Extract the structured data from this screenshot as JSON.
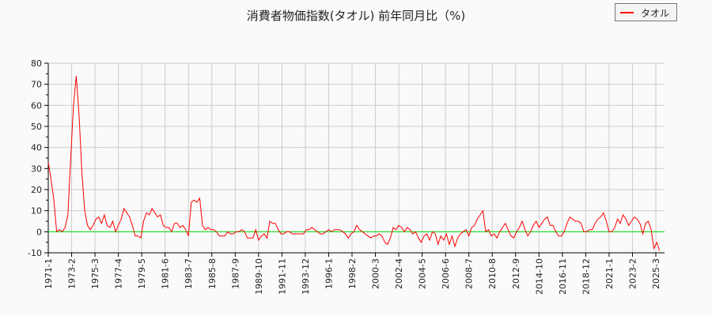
{
  "chart_data": {
    "type": "line",
    "title": "消費者物価指数(タオル) 前年同月比（%)",
    "xlabel": "",
    "ylabel": "",
    "ylim": [
      -10,
      80
    ],
    "yticks": [
      -10,
      0,
      10,
      20,
      30,
      40,
      50,
      60,
      70,
      80
    ],
    "grid": true,
    "legend_position": "top-right",
    "x_start": "1971-1",
    "x_step_months": 3,
    "xticks": [
      "1971-1",
      "1973-2",
      "1975-3",
      "1977-4",
      "1979-5",
      "1981-6",
      "1983-7",
      "1985-8",
      "1987-9",
      "1989-10",
      "1991-11",
      "1993-12",
      "1996-1",
      "1998-2",
      "2000-3",
      "2002-4",
      "2004-5",
      "2006-6",
      "2008-7",
      "2010-8",
      "2012-9",
      "2014-10",
      "2016-11",
      "2018-12",
      "2021-1",
      "2023-2",
      "2025-3"
    ],
    "series": [
      {
        "name": "タオル",
        "color": "#ff0000",
        "values": [
          33,
          25,
          15,
          0,
          1,
          0,
          2,
          8,
          35,
          60,
          74,
          55,
          28,
          10,
          3,
          1,
          3,
          6,
          7,
          4,
          8,
          3,
          2,
          5,
          0,
          3,
          6,
          11,
          9,
          7,
          3,
          -2,
          -2,
          -3,
          5,
          9,
          8,
          11,
          9,
          7,
          8,
          3,
          2,
          2,
          0,
          4,
          4,
          2,
          3,
          1,
          -2,
          14,
          15,
          14,
          16,
          3,
          1,
          2,
          1,
          1,
          0,
          -2,
          -2,
          -2,
          0,
          -1,
          -1,
          0,
          0,
          1,
          0,
          -3,
          -3,
          -3,
          1,
          -4,
          -2,
          -1,
          -3,
          5,
          4,
          4,
          1,
          -1,
          -1,
          0,
          0,
          -1,
          -1,
          -1,
          -1,
          -1,
          1,
          1,
          2,
          1,
          0,
          -1,
          -1,
          0,
          1,
          0,
          1,
          1,
          1,
          0,
          -1,
          -3,
          -1,
          0,
          3,
          1,
          0,
          -1,
          -2,
          -3,
          -2,
          -2,
          -1,
          -2,
          -5,
          -6,
          -3,
          2,
          1,
          3,
          2,
          0,
          2,
          1,
          -1,
          0,
          -3,
          -5,
          -2,
          -1,
          -4,
          0,
          -1,
          -6,
          -2,
          -4,
          -1,
          -6,
          -2,
          -7,
          -3,
          -1,
          0,
          1,
          -2,
          2,
          3,
          6,
          8,
          10,
          0,
          1,
          -2,
          -1,
          -3,
          0,
          2,
          4,
          1,
          -2,
          -3,
          0,
          2,
          5,
          1,
          -2,
          0,
          3,
          5,
          2,
          4,
          6,
          7,
          3,
          3,
          0,
          -2,
          -2,
          0,
          4,
          7,
          6,
          5,
          5,
          4,
          0,
          0,
          1,
          1,
          4,
          6,
          7,
          9,
          5,
          0,
          0,
          2,
          6,
          4,
          8,
          6,
          3,
          5,
          7,
          6,
          4,
          -1,
          4,
          5,
          1,
          -8,
          -5,
          -9
        ]
      }
    ],
    "reference_line": {
      "y": 0,
      "color": "#00dd00"
    }
  }
}
